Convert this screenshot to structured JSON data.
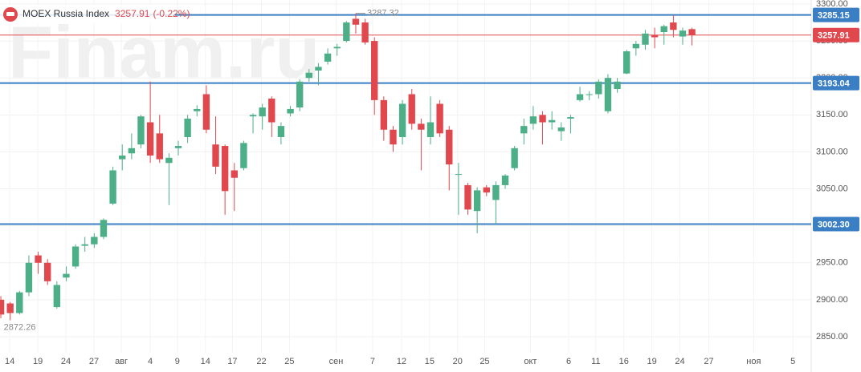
{
  "chart_data": {
    "type": "candlestick",
    "header": {
      "title": "MOEX Russia Index",
      "price": 3257.91,
      "change": "(-0.22%)"
    },
    "watermark": "Finam.ru",
    "up_color": "#4caf88",
    "down_color": "#e0484e",
    "open": [
      2900,
      2895,
      2882,
      2910,
      2960,
      2950,
      2890,
      2930,
      2945,
      2973,
      2975,
      2985,
      3030,
      3090,
      3098,
      3110,
      3140,
      3125,
      3085,
      3105,
      3120,
      3155,
      3178,
      3110,
      3108,
      3075,
      3078,
      3148,
      3148,
      3172,
      3120,
      3152,
      3160,
      3200,
      3210,
      3222,
      3240,
      3250,
      3280,
      3275,
      3250,
      3170,
      3130,
      3120,
      3178,
      3138,
      3120,
      3165,
      3130,
      3070,
      3055,
      3020,
      3052,
      3035,
      3055,
      3078,
      3125,
      3138,
      3150,
      3140,
      3128,
      3145,
      3170,
      3178,
      3178,
      3155,
      3185,
      3206,
      3240,
      3245,
      3258,
      3262,
      3275,
      3256,
      3266
    ],
    "high": [
      2905,
      2897,
      2912,
      2960,
      2965,
      2955,
      2925,
      2945,
      2975,
      2985,
      2990,
      3010,
      3080,
      3110,
      3125,
      3150,
      3195,
      3150,
      3098,
      3115,
      3150,
      3163,
      3190,
      3148,
      3110,
      3085,
      3115,
      3152,
      3165,
      3175,
      3140,
      3162,
      3198,
      3212,
      3220,
      3240,
      3246,
      3277,
      3287.32,
      3280,
      3255,
      3175,
      3135,
      3170,
      3185,
      3145,
      3175,
      3170,
      3135,
      3085,
      3058,
      3052,
      3055,
      3060,
      3070,
      3108,
      3145,
      3162,
      3155,
      3155,
      3140,
      3150,
      3188,
      3182,
      3198,
      3205,
      3200,
      3238,
      3250,
      3265,
      3268,
      3272,
      3285,
      3268,
      3268
    ],
    "low": [
      2875,
      2872.26,
      2880,
      2905,
      2935,
      2920,
      2888,
      2925,
      2942,
      2965,
      2970,
      2982,
      3028,
      3075,
      3090,
      3105,
      3085,
      3085,
      3028,
      3095,
      3112,
      3148,
      3125,
      3070,
      3015,
      3020,
      3075,
      3125,
      3130,
      3120,
      3110,
      3148,
      3155,
      3195,
      3190,
      3218,
      3230,
      3248,
      3260,
      3245,
      3150,
      3115,
      3100,
      3110,
      3130,
      3075,
      3110,
      3120,
      3048,
      3015,
      3015,
      2990,
      3040,
      3002,
      3050,
      3075,
      3110,
      3130,
      3110,
      3130,
      3115,
      3125,
      3168,
      3170,
      3172,
      3152,
      3180,
      3205,
      3230,
      3238,
      3240,
      3245,
      3255,
      3245,
      3244
    ],
    "close": [
      2880,
      2882,
      2910,
      2950,
      2950,
      2925,
      2920,
      2935,
      2972,
      2975,
      2985,
      3008,
      3075,
      3095,
      3105,
      3148,
      3095,
      3090,
      3092,
      3108,
      3145,
      3158,
      3130,
      3080,
      3047,
      3065,
      3112,
      3150,
      3160,
      3140,
      3135,
      3158,
      3195,
      3207,
      3215,
      3233,
      3242,
      3275,
      3272,
      3248,
      3170,
      3130,
      3110,
      3165,
      3138,
      3130,
      3140,
      3125,
      3083,
      3070,
      3022,
      3048,
      3045,
      3055,
      3068,
      3105,
      3135,
      3148,
      3140,
      3143,
      3133,
      3147,
      3178,
      3178,
      3195,
      3200,
      3195,
      3236,
      3246,
      3260,
      3255,
      3270,
      3265,
      3264,
      3257.91
    ],
    "annotations": [
      3287.32,
      2872.26
    ],
    "levels": [
      {
        "value": 3285.15,
        "label": "3285.15",
        "color": "#3a7fc4"
      },
      {
        "value": 3257.91,
        "label": "3257.91",
        "color": "#e0484e"
      },
      {
        "value": 3193.04,
        "label": "3193.04",
        "color": "#3a7fc4"
      },
      {
        "value": 3002.3,
        "label": "3002.30",
        "color": "#3a7fc4"
      }
    ],
    "xlim": [
      -0.09,
      86.76
    ],
    "ylim": [
      2828.3,
      3305.4
    ],
    "yticks": [
      {
        "value": 2850,
        "label": "2850.00"
      },
      {
        "value": 2900,
        "label": "2900.00"
      },
      {
        "value": 2950,
        "label": "2950.00"
      },
      {
        "value": 3000,
        "label": "3000.00"
      },
      {
        "value": 3050,
        "label": "3050.00"
      },
      {
        "value": 3100,
        "label": "3100.00"
      },
      {
        "value": 3150,
        "label": "3150.00"
      },
      {
        "value": 3200,
        "label": "3200.00"
      },
      {
        "value": 3250,
        "label": "3250.00"
      },
      {
        "value": 3300,
        "label": "3300.00"
      }
    ],
    "xticks": [
      {
        "value": 0.95,
        "label": "14"
      },
      {
        "value": 3.96,
        "label": "19"
      },
      {
        "value": 6.96,
        "label": "24"
      },
      {
        "value": 9.97,
        "label": "27"
      },
      {
        "value": 12.9,
        "label": "авг"
      },
      {
        "value": 16.0,
        "label": "4"
      },
      {
        "value": 18.9,
        "label": "9"
      },
      {
        "value": 21.9,
        "label": "14"
      },
      {
        "value": 24.8,
        "label": "17"
      },
      {
        "value": 27.9,
        "label": "22"
      },
      {
        "value": 30.9,
        "label": "25"
      },
      {
        "value": 35.9,
        "label": "сен"
      },
      {
        "value": 39.8,
        "label": "7"
      },
      {
        "value": 42.9,
        "label": "12"
      },
      {
        "value": 45.9,
        "label": "15"
      },
      {
        "value": 48.9,
        "label": "20"
      },
      {
        "value": 51.8,
        "label": "25"
      },
      {
        "value": 56.7,
        "label": "окт"
      },
      {
        "value": 60.8,
        "label": "6"
      },
      {
        "value": 63.7,
        "label": "11"
      },
      {
        "value": 66.7,
        "label": "16"
      },
      {
        "value": 69.7,
        "label": "19"
      },
      {
        "value": 72.7,
        "label": "24"
      },
      {
        "value": 75.8,
        "label": "27"
      },
      {
        "value": 80.6,
        "label": "ноя"
      },
      {
        "value": 84.8,
        "label": "5"
      }
    ],
    "grid": true
  }
}
